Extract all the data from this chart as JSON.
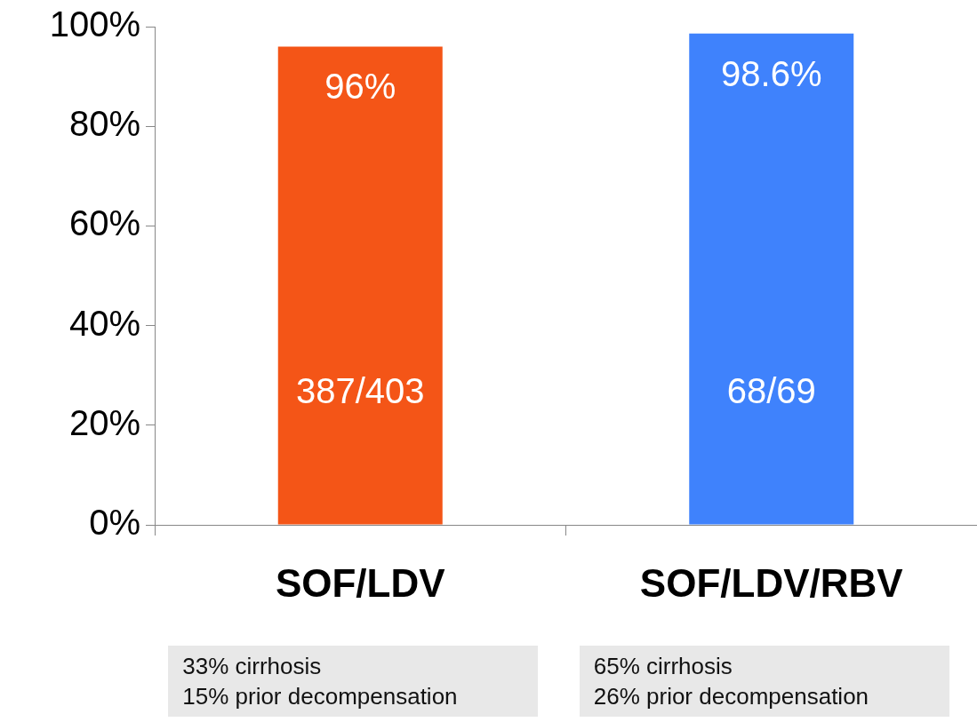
{
  "chart_data": {
    "type": "bar",
    "categories": [
      "SOF/LDV",
      "SOF/LDV/RBV"
    ],
    "values": [
      96,
      98.6
    ],
    "colors": [
      "#f45517",
      "#3f82fc"
    ],
    "value_labels": [
      "96%",
      "98.6%"
    ],
    "ylim": [
      0,
      100
    ],
    "yticks": [
      {
        "value": 0,
        "label": "0%"
      },
      {
        "value": 20,
        "label": "20%"
      },
      {
        "value": 40,
        "label": "40%"
      },
      {
        "value": 60,
        "label": "60%"
      },
      {
        "value": 80,
        "label": "80%"
      },
      {
        "value": 100,
        "label": "100%"
      }
    ],
    "grid": false,
    "legend": false,
    "annotations": [
      "387/403",
      "68/69",
      "33% cirrhosis\n15% prior decompensation",
      "65% cirrhosis\n26% prior decompensation"
    ]
  }
}
